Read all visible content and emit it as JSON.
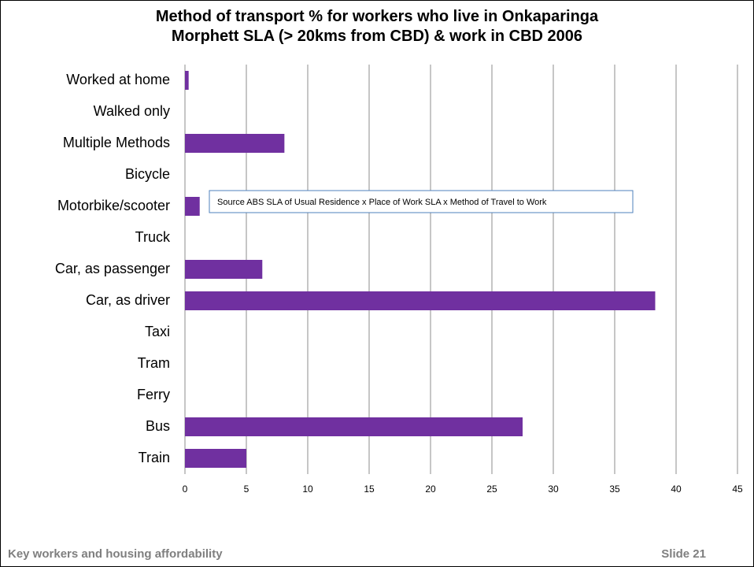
{
  "chart_data": {
    "type": "bar",
    "orientation": "horizontal",
    "title": "Method of transport % for workers who live in Onkaparinga Morphett SLA (> 20kms from CBD) & work in CBD 2006",
    "categories": [
      "Worked at home",
      "Walked only",
      "Multiple Methods",
      "Bicycle",
      "Motorbike/scooter",
      "Truck",
      "Car, as passenger",
      "Car, as driver",
      "Taxi",
      "Tram",
      "Ferry",
      "Bus",
      "Train"
    ],
    "values": [
      0.3,
      0,
      8.1,
      0,
      1.2,
      0,
      6.3,
      38.3,
      0,
      0,
      0,
      27.5,
      5.0
    ],
    "color": "#7030a0",
    "xlim": [
      0,
      45
    ],
    "xticks": [
      0,
      5,
      10,
      15,
      20,
      25,
      30,
      35,
      40,
      45
    ],
    "grid": true,
    "annotation": "Source ABS SLA of Usual Residence x Place of Work SLA x Method of Travel to Work"
  },
  "footer": {
    "left": "Key workers and housing affordability",
    "right": "Slide 21"
  }
}
